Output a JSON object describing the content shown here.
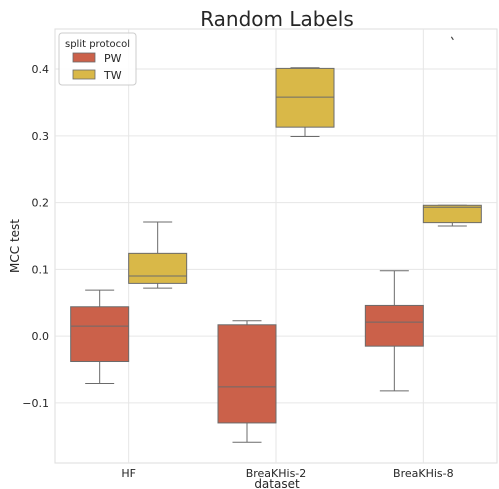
{
  "chart_data": {
    "type": "box",
    "title": "Random Labels",
    "xlabel": "dataset",
    "ylabel": "MCC test",
    "ylim": [
      -0.19,
      0.46
    ],
    "yticks": [
      -0.1,
      0.0,
      0.1,
      0.2,
      0.3,
      0.4
    ],
    "ytick_labels": [
      "−0.1",
      "0.0",
      "0.1",
      "0.2",
      "0.3",
      "0.4"
    ],
    "grid": true,
    "categories": [
      "HF",
      "BreaKHis-2",
      "BreaKHis-8"
    ],
    "legend": {
      "title": "split protocol",
      "position": "top-left"
    },
    "series": [
      {
        "name": "PW",
        "color": "#cb614a",
        "boxes": [
          {
            "whisker_low": -0.071,
            "q1": -0.038,
            "median": 0.015,
            "q3": 0.044,
            "whisker_high": 0.069,
            "outliers": []
          },
          {
            "whisker_low": -0.159,
            "q1": -0.13,
            "median": -0.076,
            "q3": 0.017,
            "whisker_high": 0.023,
            "outliers": []
          },
          {
            "whisker_low": -0.082,
            "q1": -0.015,
            "median": 0.021,
            "q3": 0.046,
            "whisker_high": 0.098,
            "outliers": []
          }
        ]
      },
      {
        "name": "TW",
        "color": "#d9b848",
        "boxes": [
          {
            "whisker_low": 0.072,
            "q1": 0.079,
            "median": 0.09,
            "q3": 0.124,
            "whisker_high": 0.171,
            "outliers": []
          },
          {
            "whisker_low": 0.299,
            "q1": 0.313,
            "median": 0.358,
            "q3": 0.401,
            "whisker_high": 0.402,
            "outliers": []
          },
          {
            "whisker_low": 0.165,
            "q1": 0.17,
            "median": 0.193,
            "q3": 0.196,
            "whisker_high": 0.196,
            "outliers": [
              0.446
            ]
          }
        ]
      }
    ]
  }
}
